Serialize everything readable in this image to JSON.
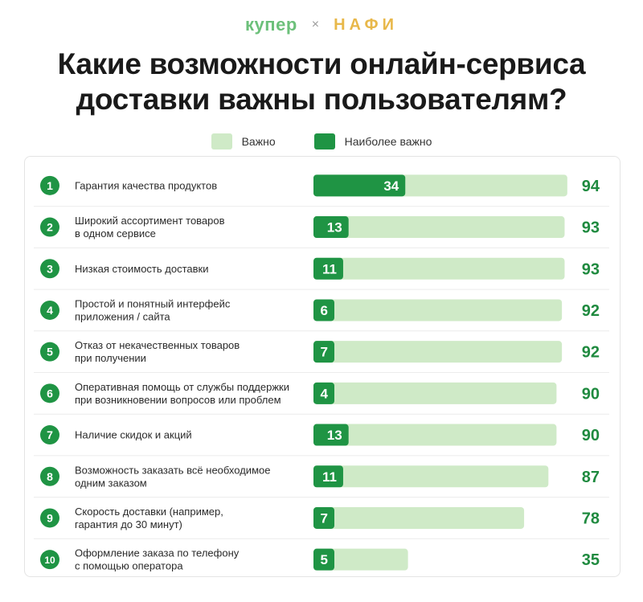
{
  "brand": {
    "left": "купер",
    "separator": "×",
    "right": "НАФИ"
  },
  "title_line1": "Какие возможности онлайн-сервиса",
  "title_line2": "доставки важны пользователям?",
  "colors": {
    "important": "#cfeac7",
    "most_important": "#1f9444",
    "total_text": "#1f8a3f"
  },
  "chart_data": {
    "type": "bar",
    "orientation": "horizontal",
    "stacked": "overlay",
    "xlim": [
      0,
      100
    ],
    "legend": {
      "placement": "top-center",
      "items": [
        "Важно",
        "Наиболее важно"
      ]
    },
    "series": [
      {
        "name": "Важно",
        "values": [
          94,
          93,
          93,
          92,
          92,
          90,
          90,
          87,
          78,
          35
        ]
      },
      {
        "name": "Наиболее важно",
        "values": [
          34,
          13,
          11,
          6,
          7,
          4,
          13,
          11,
          7,
          5
        ]
      }
    ],
    "categories": [
      {
        "rank": "1",
        "lines": [
          "Гарантия качества продуктов"
        ]
      },
      {
        "rank": "2",
        "lines": [
          "Широкий ассортимент товаров",
          "в одном сервисе"
        ]
      },
      {
        "rank": "3",
        "lines": [
          "Низкая стоимость доставки"
        ]
      },
      {
        "rank": "4",
        "lines": [
          "Простой и понятный интерфейс",
          "приложения / сайта"
        ]
      },
      {
        "rank": "5",
        "lines": [
          "Отказ от некачественных товаров",
          "при получении"
        ]
      },
      {
        "rank": "6",
        "lines": [
          "Оперативная помощь от службы поддержки",
          "при возникновении вопросов или проблем"
        ]
      },
      {
        "rank": "7",
        "lines": [
          "Наличие скидок и акций"
        ]
      },
      {
        "rank": "8",
        "lines": [
          "Возможность заказать всё необходимое",
          "одним заказом"
        ]
      },
      {
        "rank": "9",
        "lines": [
          "Скорость доставки (например,",
          "гарантия до 30 минут)"
        ]
      },
      {
        "rank": "10",
        "lines": [
          "Оформление заказа по телефону",
          "с помощью оператора"
        ]
      }
    ]
  }
}
